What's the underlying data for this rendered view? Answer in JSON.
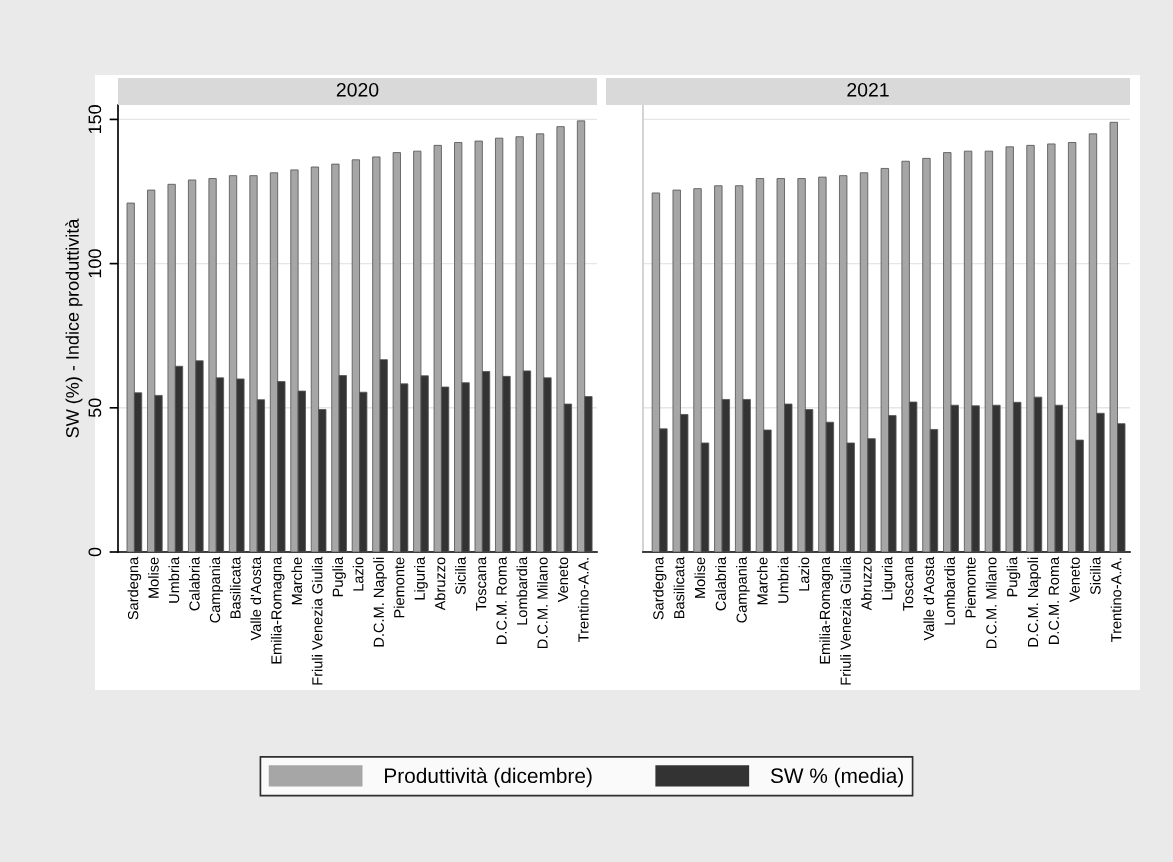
{
  "chart_data": [
    {
      "type": "bar",
      "title": "2020",
      "ylabel": "SW (%) - Indice produttività",
      "categories": [
        "Sardegna",
        "Molise",
        "Umbria",
        "Calabria",
        "Campania",
        "Basilicata",
        "Valle d'Aosta",
        "Emilia-Romagna",
        "Marche",
        "Friuli Venezia Giulia",
        "Puglia",
        "Lazio",
        "D.C.M. Napoli",
        "Piemonte",
        "Liguria",
        "Abruzzo",
        "Sicilia",
        "Toscana",
        "D.C.M. Roma",
        "Lombardia",
        "D.C.M. Milano",
        "Veneto",
        "Trentino-A.A."
      ],
      "series": [
        {
          "name": "Produttività (dicembre)",
          "color": "#a6a6a6",
          "values": [
            121,
            125.5,
            127.5,
            129,
            129.5,
            130.5,
            130.5,
            131.5,
            132.5,
            133.5,
            134.5,
            136,
            137,
            138.5,
            139,
            141,
            142,
            142.5,
            143.5,
            144,
            145,
            147.5,
            149.5
          ]
        },
        {
          "name": "SW % (media)",
          "color": "#333333",
          "values": [
            55.2,
            54.3,
            64.4,
            66.3,
            60.4,
            60.0,
            52.8,
            59.1,
            55.8,
            49.4,
            61.2,
            55.4,
            66.7,
            58.3,
            61.1,
            57.2,
            58.7,
            62.6,
            60.9,
            62.8,
            60.4,
            51.3,
            53.9
          ]
        }
      ],
      "ylim": [
        0,
        155
      ],
      "yticks": [
        0,
        50,
        100,
        150
      ],
      "grid": "y",
      "legend": "bottom"
    },
    {
      "type": "bar",
      "title": "2021",
      "categories": [
        "Sardegna",
        "Basilicata",
        "Molise",
        "Calabria",
        "Campania",
        "Marche",
        "Umbria",
        "Lazio",
        "Emilia-Romagna",
        "Friuli Venezia Giulia",
        "Abruzzo",
        "Liguria",
        "Toscana",
        "Valle d'Aosta",
        "Lombardia",
        "Piemonte",
        "D.C.M. Milano",
        "Puglia",
        "D.C.M. Napoli",
        "D.C.M. Roma",
        "Veneto",
        "Sicilia",
        "Trentino-A.A."
      ],
      "series": [
        {
          "name": "Produttività (dicembre)",
          "color": "#a6a6a6",
          "values": [
            124.5,
            125.5,
            126,
            127,
            127,
            129.5,
            129.5,
            129.5,
            130,
            130.5,
            131.5,
            133,
            135.5,
            136.5,
            138.5,
            139,
            139,
            140.5,
            141,
            141.5,
            142,
            145,
            149
          ]
        },
        {
          "name": "SW % (media)",
          "color": "#333333",
          "values": [
            42.7,
            47.7,
            37.8,
            52.9,
            52.9,
            42.3,
            51.3,
            49.4,
            45.0,
            37.8,
            39.3,
            47.3,
            52.0,
            42.5,
            50.9,
            50.7,
            50.9,
            51.9,
            53.7,
            50.9,
            38.8,
            48.1,
            44.5
          ]
        }
      ],
      "ylim": [
        0,
        155
      ],
      "yticks": [
        0,
        50,
        100,
        150
      ],
      "grid": "y",
      "tick_labels": "x"
    }
  ]
}
